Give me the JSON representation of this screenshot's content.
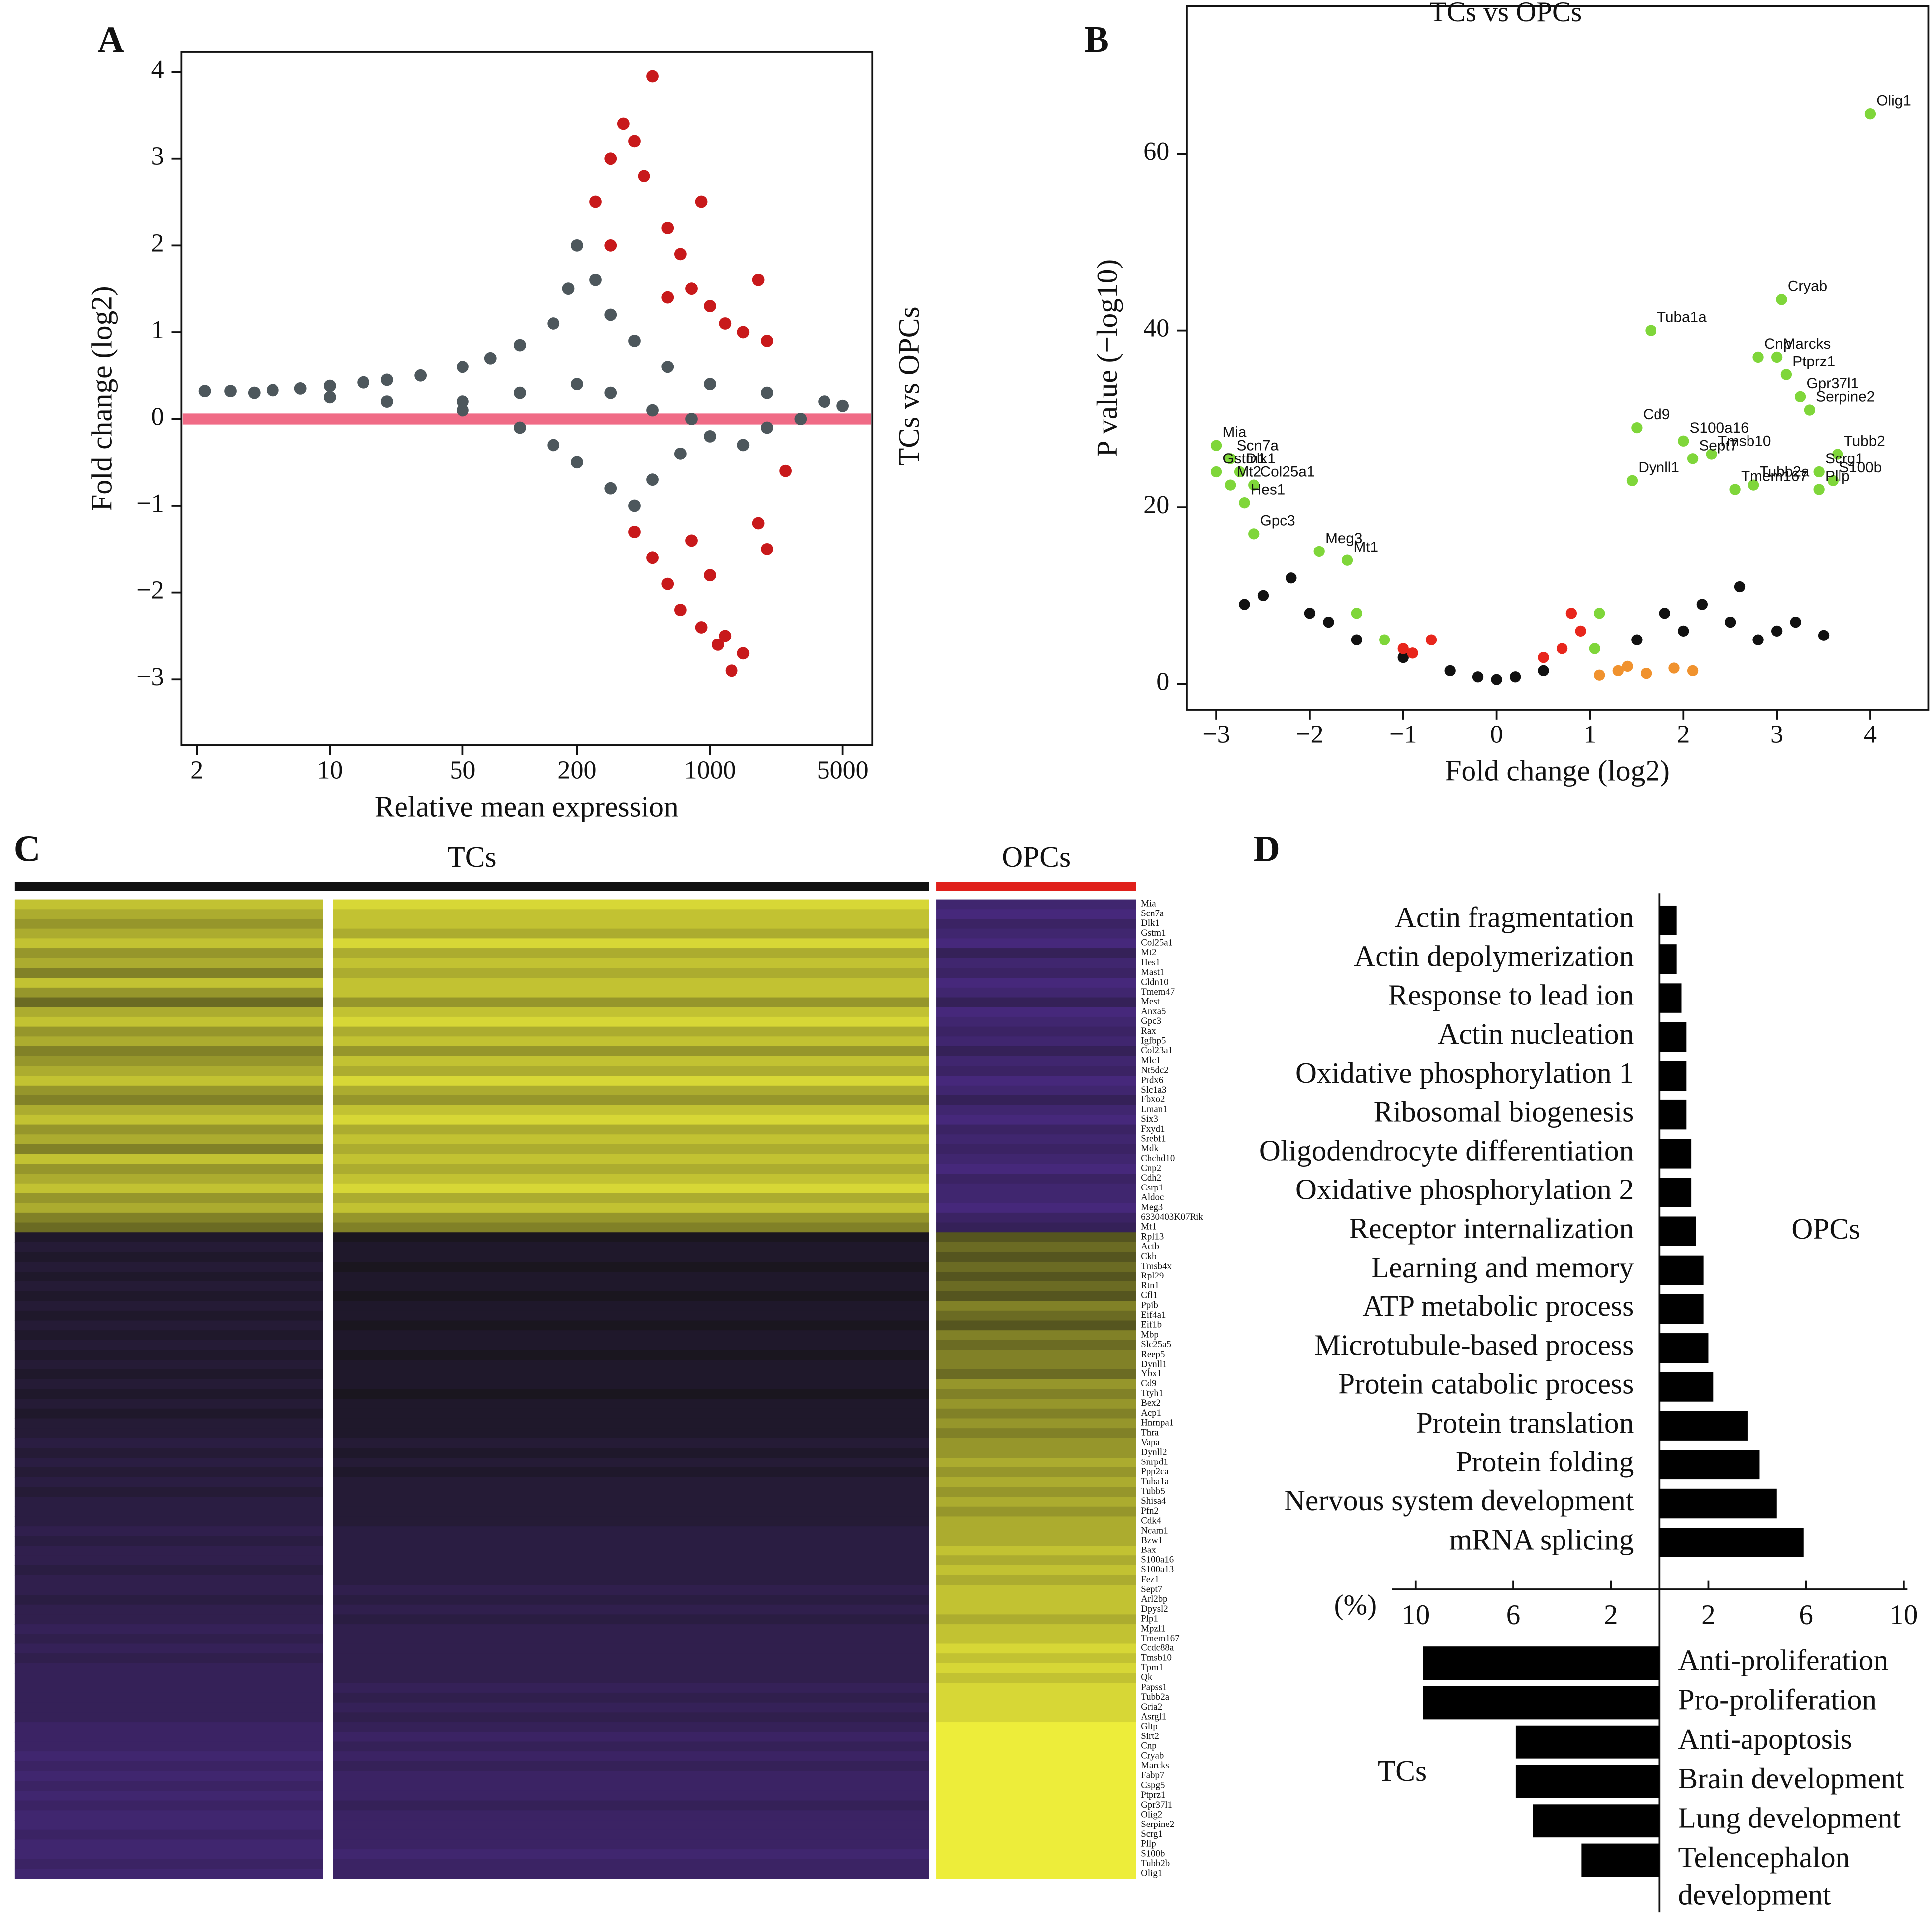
{
  "chart_data": [
    {
      "type": "scatter",
      "panel_label": "A",
      "xlabel": "Relative mean expression",
      "ylabel": "Fold change (log2)",
      "side_label": "TCs vs OPCs",
      "xscale": "log",
      "xlim": [
        1.65,
        7160
      ],
      "ylim": [
        -3.76,
        4.23
      ],
      "xticks": [
        2,
        10,
        50,
        200,
        1000,
        5000
      ],
      "yticks": [
        {
          "value": -3,
          "label": "−3"
        },
        {
          "value": -2,
          "label": "−2"
        },
        {
          "value": -1,
          "label": "−1"
        },
        0,
        1,
        2,
        3,
        4
      ],
      "reference_line": {
        "y": 0,
        "color": "#f06b86"
      },
      "series": [
        {
          "color": "#4d575c",
          "x": [
            2.2,
            3,
            4,
            5,
            7,
            10,
            15,
            20,
            30,
            50,
            70,
            100,
            150,
            180,
            200,
            250,
            300,
            400,
            600,
            1000,
            2000,
            4000,
            5000,
            10,
            20,
            50,
            100,
            150,
            200,
            300,
            400,
            500,
            700,
            1000,
            2000,
            3000,
            50,
            100,
            200,
            300,
            500,
            800,
            1500
          ],
          "values": [
            0.32,
            0.32,
            0.3,
            0.33,
            0.35,
            0.38,
            0.42,
            0.45,
            0.5,
            0.6,
            0.7,
            0.85,
            1.1,
            1.5,
            2.0,
            1.6,
            1.2,
            0.9,
            0.6,
            0.4,
            0.3,
            0.2,
            0.15,
            0.25,
            0.2,
            0.1,
            -0.1,
            -0.3,
            -0.5,
            -0.8,
            -1.0,
            -0.7,
            -0.4,
            -0.2,
            -0.1,
            0.0,
            0.2,
            0.3,
            0.4,
            0.3,
            0.1,
            0.0,
            -0.3
          ]
        },
        {
          "color": "#c8191b",
          "x": [
            250,
            300,
            350,
            400,
            500,
            450,
            600,
            700,
            800,
            1000,
            1200,
            1500,
            2000,
            1800,
            900,
            300,
            600,
            400,
            500,
            600,
            700,
            900,
            1100,
            1300,
            1200,
            1000,
            1500,
            800,
            2000,
            2500,
            1800
          ],
          "values": [
            2.5,
            3.0,
            3.4,
            3.2,
            3.95,
            2.8,
            2.2,
            1.9,
            1.5,
            1.3,
            1.1,
            1.0,
            0.9,
            1.6,
            2.5,
            2.0,
            1.4,
            -1.3,
            -1.6,
            -1.9,
            -2.2,
            -2.4,
            -2.6,
            -2.9,
            -2.5,
            -1.8,
            -2.7,
            -1.4,
            -1.5,
            -0.6,
            -1.2
          ]
        }
      ]
    },
    {
      "type": "scatter",
      "panel_label": "B",
      "title": "TCs vs OPCs",
      "xlabel": "Fold change (log2)",
      "ylabel": "P value (−log10)",
      "xlim": [
        -3.32,
        4.62
      ],
      "ylim": [
        -2.9,
        76.7
      ],
      "xticks": [
        {
          "value": -3,
          "label": "−3"
        },
        {
          "value": -2,
          "label": "−2"
        },
        {
          "value": -1,
          "label": "−1"
        },
        0,
        1,
        2,
        3,
        4
      ],
      "yticks": [
        0,
        20,
        40,
        60
      ],
      "series": [
        {
          "color": "#111111",
          "x": [
            -2.5,
            -2.0,
            -1.8,
            -1.5,
            -1.0,
            -0.5,
            0.0,
            0.5,
            1.5,
            2.0,
            2.5,
            3.0,
            3.5,
            -2.2,
            1.8,
            2.2,
            2.8,
            -2.7,
            -0.2,
            0.2,
            3.2,
            2.6
          ],
          "values": [
            10,
            8,
            7,
            5,
            3,
            1.5,
            0.5,
            1.5,
            5,
            6,
            7,
            6,
            5.5,
            12,
            8,
            9,
            5,
            9,
            0.8,
            0.8,
            7,
            11
          ]
        },
        {
          "color": "#e8261c",
          "x": [
            -1.0,
            -0.7,
            -0.9,
            0.5,
            0.7,
            0.9,
            0.8
          ],
          "values": [
            4,
            5,
            3.5,
            3,
            4,
            6,
            8
          ]
        },
        {
          "color": "#f0922e",
          "x": [
            1.1,
            1.3,
            1.6,
            1.9,
            2.1,
            1.4
          ],
          "values": [
            1,
            1.5,
            1.2,
            1.8,
            1.5,
            2
          ]
        },
        {
          "color": "#7fd63a",
          "x": [
            4.0,
            3.05,
            1.65,
            3.0,
            2.8,
            3.1,
            3.25,
            3.35,
            1.5,
            2.0,
            2.3,
            2.1,
            3.65,
            3.45,
            3.6,
            3.45,
            1.45,
            2.75,
            2.55,
            -3.0,
            -2.85,
            -3.0,
            -2.75,
            -2.85,
            -2.6,
            -2.7,
            -2.6,
            -1.9,
            -1.6,
            1.05,
            1.1,
            -1.2,
            -1.5
          ],
          "values": [
            64.5,
            43.5,
            40,
            37,
            37,
            35,
            32.5,
            31,
            29,
            27.5,
            26,
            25.5,
            26,
            24,
            23,
            22,
            23,
            22.5,
            22,
            27,
            25.5,
            24,
            24,
            22.5,
            22.5,
            20.5,
            17,
            15,
            14,
            4,
            8,
            5,
            8
          ],
          "labels": [
            "Olig1",
            "Cryab",
            "Tuba1a",
            "Marcks",
            "Cnp",
            "Ptprz1",
            "Gpr37l1",
            "Serpine2",
            "Cd9",
            "S100a16",
            "Tmsb10",
            "Sept7",
            "Tubb2",
            "Scrg1",
            "S100b",
            "Pllp",
            "Dynll1",
            "Tubb2a",
            "Tmem167",
            "Mia",
            "Scn7a",
            "Gstm1",
            "Dlk1",
            "Mt2",
            "Col25a1",
            "Hes1",
            "Gpc3",
            "Meg3",
            "Mt1",
            null,
            null,
            null,
            null
          ]
        }
      ]
    },
    {
      "type": "heatmap",
      "panel_label": "C",
      "groups": [
        {
          "name": "TCs",
          "color": "#111111"
        },
        {
          "name": "OPCs",
          "color": "#e0201b"
        }
      ],
      "color_scale": [
        "#4b2a86",
        "#141414",
        "#eded3a"
      ],
      "zlim": [
        -1,
        1
      ],
      "rows": [
        "Mia",
        "Scn7a",
        "Dlk1",
        "Gstm1",
        "Col25a1",
        "Mt2",
        "Hes1",
        "Mast1",
        "Cldn10",
        "Tmem47",
        "Mest",
        "Anxa5",
        "Gpc3",
        "Rax",
        "Igfbp5",
        "Col23a1",
        "Mlc1",
        "Nt5dc2",
        "Prdx6",
        "Slc1a3",
        "Fbxo2",
        "Lman1",
        "Six3",
        "Fxyd1",
        "Srebf1",
        "Mdk",
        "Chchd10",
        "Cnp2",
        "Cdh2",
        "Csrp1",
        "Aldoc",
        "Meg3",
        "6330403K07Rik",
        "Mt1",
        "Rpl13",
        "Actb",
        "Ckb",
        "Tmsb4x",
        "Rpl29",
        "Rtn1",
        "Cfl1",
        "Ppib",
        "Eif4a1",
        "Eif1b",
        "Mbp",
        "Slc25a5",
        "Reep5",
        "Dynll1",
        "Ybx1",
        "Cd9",
        "Ttyh1",
        "Bex2",
        "Acp1",
        "Hnrnpa1",
        "Thra",
        "Vapa",
        "Dynll2",
        "Snrpd1",
        "Ppp2ca",
        "Tuba1a",
        "Tubb5",
        "Shisa4",
        "Pfn2",
        "Cdk4",
        "Ncam1",
        "Bzw1",
        "Bax",
        "S100a16",
        "S100a13",
        "Fez1",
        "Sept7",
        "Arl2bp",
        "Dpysl2",
        "Plp1",
        "Mpzl1",
        "Tmem167",
        "Ccdc88a",
        "Tmsb10",
        "Tpm1",
        "Qk",
        "Papss1",
        "Tubb2a",
        "Gria2",
        "Asrgl1",
        "Gltp",
        "Sirt2",
        "Cnp",
        "Cryab",
        "Marcks",
        "Fabp7",
        "Cspg5",
        "Ptprz1",
        "Gpr37l1",
        "Olig2",
        "Serpine2",
        "Scrg1",
        "Pllp",
        "S100b",
        "Tubb2b",
        "Olig1"
      ],
      "values": [
        [
          0.8,
          0.9,
          -0.8
        ],
        [
          0.7,
          0.8,
          -0.9
        ],
        [
          0.6,
          0.8,
          -0.7
        ],
        [
          0.7,
          0.7,
          -0.8
        ],
        [
          0.8,
          0.9,
          -0.9
        ],
        [
          0.6,
          0.7,
          -0.6
        ],
        [
          0.7,
          0.8,
          -0.8
        ],
        [
          0.5,
          0.7,
          -0.7
        ],
        [
          0.8,
          0.8,
          -0.9
        ],
        [
          0.6,
          0.8,
          -0.8
        ],
        [
          0.4,
          0.6,
          -0.6
        ],
        [
          0.7,
          0.8,
          -0.9
        ],
        [
          0.8,
          0.9,
          -0.8
        ],
        [
          0.6,
          0.7,
          -0.7
        ],
        [
          0.7,
          0.8,
          -0.8
        ],
        [
          0.5,
          0.6,
          -0.6
        ],
        [
          0.6,
          0.8,
          -0.8
        ],
        [
          0.7,
          0.7,
          -0.7
        ],
        [
          0.8,
          0.9,
          -0.9
        ],
        [
          0.6,
          0.7,
          -0.8
        ],
        [
          0.5,
          0.6,
          -0.6
        ],
        [
          0.7,
          0.8,
          -0.8
        ],
        [
          0.8,
          0.9,
          -0.9
        ],
        [
          0.6,
          0.7,
          -0.7
        ],
        [
          0.7,
          0.8,
          -0.8
        ],
        [
          0.5,
          0.7,
          -0.7
        ],
        [
          0.8,
          0.8,
          -0.8
        ],
        [
          0.6,
          0.7,
          -0.9
        ],
        [
          0.7,
          0.8,
          -0.7
        ],
        [
          0.8,
          0.9,
          -0.8
        ],
        [
          0.6,
          0.7,
          -0.8
        ],
        [
          0.7,
          0.8,
          -0.9
        ],
        [
          0.5,
          0.6,
          -0.7
        ],
        [
          0.4,
          0.5,
          -0.6
        ],
        [
          -0.2,
          -0.1,
          0.3
        ],
        [
          -0.3,
          -0.2,
          0.4
        ],
        [
          -0.2,
          -0.2,
          0.3
        ],
        [
          -0.3,
          -0.1,
          0.4
        ],
        [
          -0.2,
          -0.2,
          0.3
        ],
        [
          -0.3,
          -0.2,
          0.4
        ],
        [
          -0.2,
          -0.1,
          0.3
        ],
        [
          -0.3,
          -0.2,
          0.5
        ],
        [
          -0.2,
          -0.2,
          0.4
        ],
        [
          -0.3,
          -0.1,
          0.3
        ],
        [
          -0.2,
          -0.2,
          0.5
        ],
        [
          -0.3,
          -0.2,
          0.4
        ],
        [
          -0.2,
          -0.1,
          0.5
        ],
        [
          -0.3,
          -0.2,
          0.5
        ],
        [
          -0.2,
          -0.2,
          0.4
        ],
        [
          -0.3,
          -0.2,
          0.6
        ],
        [
          -0.2,
          -0.1,
          0.5
        ],
        [
          -0.3,
          -0.2,
          0.6
        ],
        [
          -0.2,
          -0.2,
          0.5
        ],
        [
          -0.3,
          -0.2,
          0.6
        ],
        [
          -0.3,
          -0.2,
          0.5
        ],
        [
          -0.4,
          -0.3,
          0.6
        ],
        [
          -0.3,
          -0.2,
          0.6
        ],
        [
          -0.4,
          -0.3,
          0.7
        ],
        [
          -0.3,
          -0.2,
          0.6
        ],
        [
          -0.4,
          -0.3,
          0.7
        ],
        [
          -0.3,
          -0.3,
          0.6
        ],
        [
          -0.4,
          -0.3,
          0.7
        ],
        [
          -0.4,
          -0.3,
          0.6
        ],
        [
          -0.4,
          -0.3,
          0.7
        ],
        [
          -0.5,
          -0.4,
          0.7
        ],
        [
          -0.4,
          -0.4,
          0.7
        ],
        [
          -0.5,
          -0.4,
          0.8
        ],
        [
          -0.5,
          -0.4,
          0.7
        ],
        [
          -0.4,
          -0.4,
          0.8
        ],
        [
          -0.5,
          -0.4,
          0.7
        ],
        [
          -0.5,
          -0.5,
          0.8
        ],
        [
          -0.4,
          -0.4,
          0.8
        ],
        [
          -0.5,
          -0.5,
          0.8
        ],
        [
          -0.5,
          -0.4,
          0.7
        ],
        [
          -0.6,
          -0.5,
          0.8
        ],
        [
          -0.5,
          -0.5,
          0.8
        ],
        [
          -0.6,
          -0.5,
          0.9
        ],
        [
          -0.5,
          -0.5,
          0.8
        ],
        [
          -0.6,
          -0.5,
          0.9
        ],
        [
          -0.6,
          -0.5,
          0.8
        ],
        [
          -0.6,
          -0.6,
          0.9
        ],
        [
          -0.6,
          -0.5,
          0.9
        ],
        [
          -0.6,
          -0.6,
          0.9
        ],
        [
          -0.6,
          -0.5,
          0.9
        ],
        [
          -0.7,
          -0.6,
          1.0
        ],
        [
          -0.7,
          -0.7,
          1.0
        ],
        [
          -0.7,
          -0.6,
          1.1
        ],
        [
          -0.8,
          -0.7,
          1.0
        ],
        [
          -0.7,
          -0.6,
          1.1
        ],
        [
          -0.8,
          -0.7,
          1.1
        ],
        [
          -0.7,
          -0.7,
          1.0
        ],
        [
          -0.8,
          -0.7,
          1.1
        ],
        [
          -0.7,
          -0.6,
          1.0
        ],
        [
          -0.8,
          -0.7,
          1.1
        ],
        [
          -0.8,
          -0.7,
          1.0
        ],
        [
          -0.7,
          -0.7,
          1.1
        ],
        [
          -0.8,
          -0.7,
          1.1
        ],
        [
          -0.8,
          -0.8,
          1.0
        ],
        [
          -0.7,
          -0.7,
          1.1
        ],
        [
          -0.8,
          -0.7,
          1.1
        ]
      ]
    },
    {
      "type": "bar",
      "panel_label": "D",
      "xlabel": "(%)",
      "color": "#000000",
      "xticks": [
        2,
        6,
        10
      ],
      "series": [
        {
          "name": "OPCs",
          "categories": [
            "Actin fragmentation",
            "Actin depolymerization",
            "Response to lead ion",
            "Actin nucleation",
            "Oxidative phosphorylation 1",
            "Ribosomal biogenesis",
            "Oligodendrocyte differentiation",
            "Oxidative phosphorylation 2",
            "Receptor internalization",
            "Learning and memory",
            "ATP metabolic process",
            "Microtubule-based process",
            "Protein catabolic process",
            "Protein translation",
            "Protein folding",
            "Nervous system development",
            "mRNA splicing"
          ],
          "values": [
            0.7,
            0.7,
            0.9,
            1.1,
            1.1,
            1.1,
            1.3,
            1.3,
            1.5,
            1.8,
            1.8,
            2.0,
            2.2,
            3.6,
            4.1,
            4.8,
            5.9
          ]
        },
        {
          "name": "TCs",
          "categories": [
            "Anti-proliferation",
            "Pro-proliferation",
            "Anti-apoptosis",
            "Brain development",
            "Lung development",
            "Telencephalon development"
          ],
          "values": [
            9.7,
            9.7,
            5.9,
            5.9,
            5.2,
            3.2
          ]
        }
      ]
    }
  ]
}
